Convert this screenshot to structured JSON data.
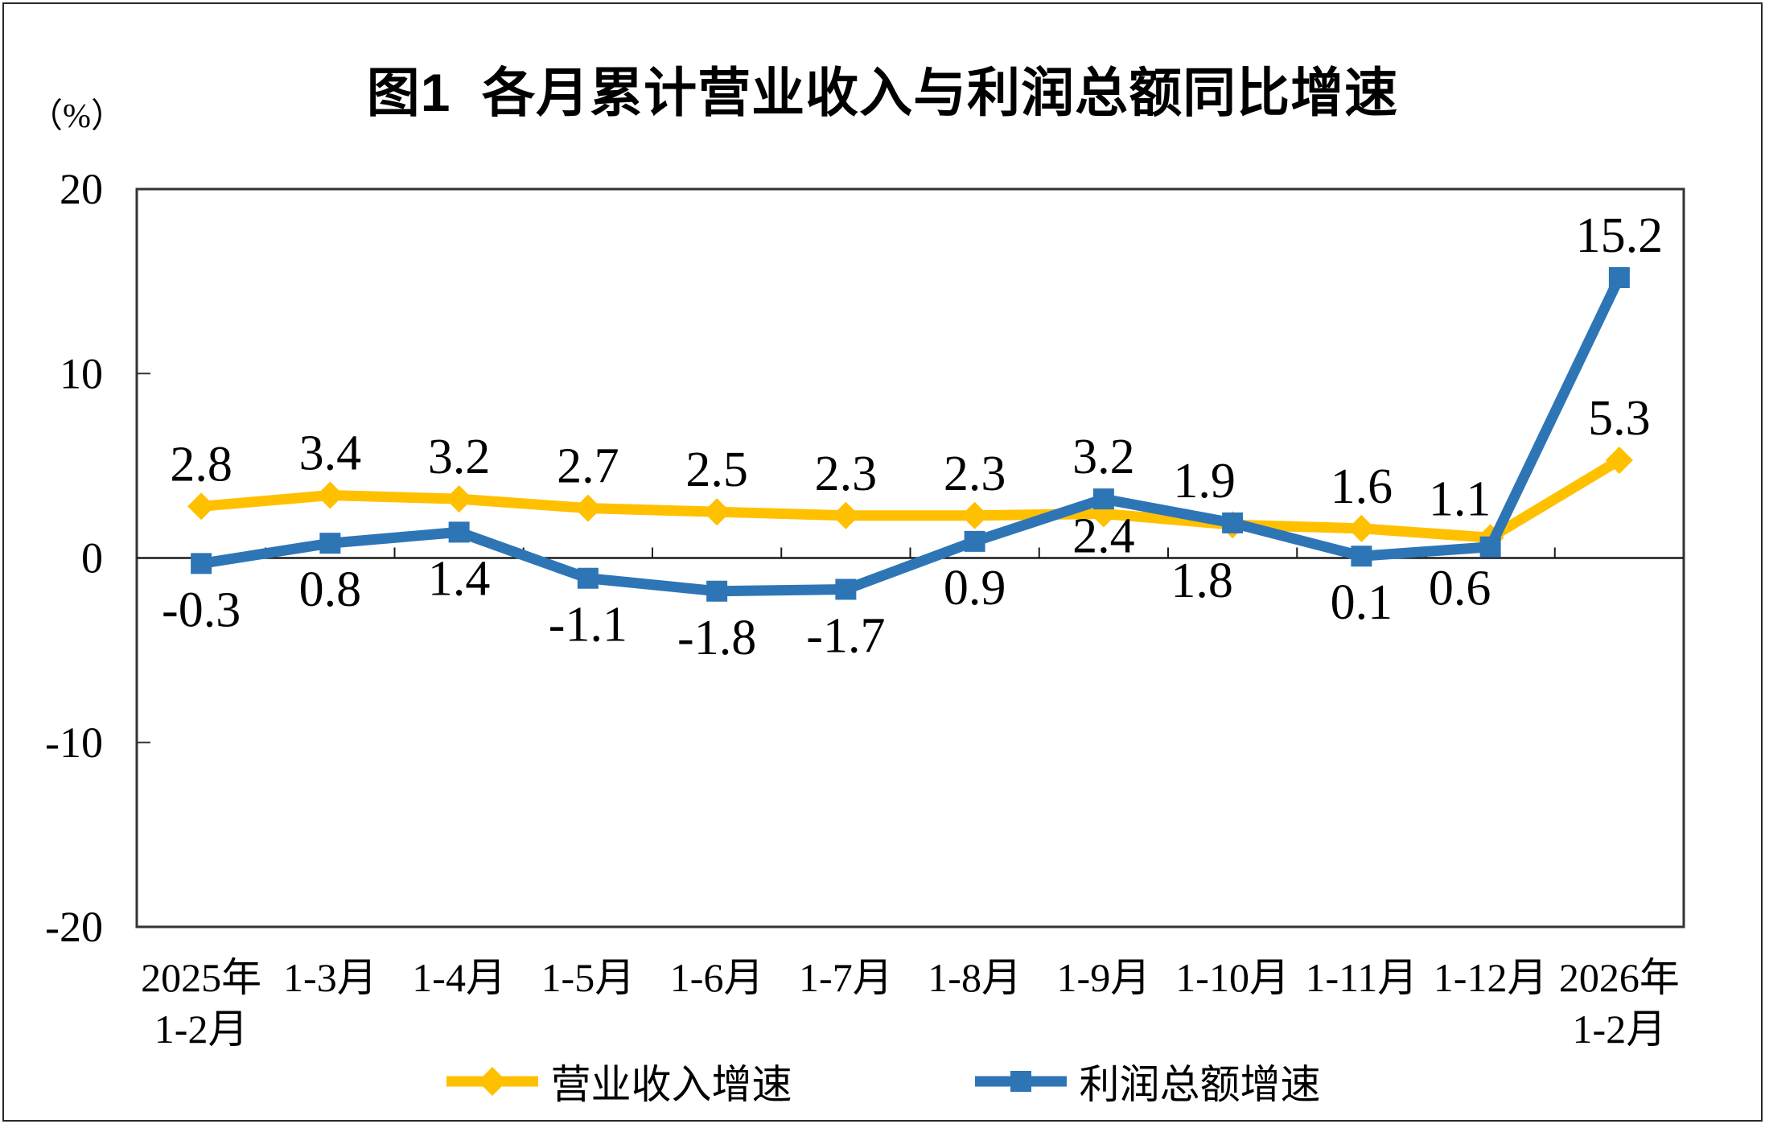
{
  "figure": {
    "title": "图1  各月累计营业收入与利润总额同比增速",
    "unit_label": "（%）"
  },
  "chart_data": {
    "type": "line",
    "title": "图1  各月累计营业收入与利润总额同比增速",
    "ylabel": "（%）",
    "grid": false,
    "legend_position": "bottom",
    "categories": [
      "2025年\n1-2月",
      "1-3月",
      "1-4月",
      "1-5月",
      "1-6月",
      "1-7月",
      "1-8月",
      "1-9月",
      "1-10月",
      "1-11月",
      "1-12月",
      "2026年\n1-2月"
    ],
    "y_axis": {
      "ticks": [
        20,
        10,
        0,
        -10,
        -20
      ],
      "min": -20,
      "max": 20,
      "unit": "（%）"
    },
    "series": [
      {
        "name": "营业收入增速",
        "color": "#FFC000",
        "marker": "diamond",
        "values": [
          2.8,
          3.4,
          3.2,
          2.7,
          2.5,
          2.3,
          2.3,
          2.4,
          1.8,
          1.6,
          1.1,
          5.3
        ],
        "label_positions": [
          "above",
          "above",
          "above",
          "above",
          "above",
          "above",
          "above",
          {
            "pos": "below",
            "dy": 48
          },
          {
            "pos": "below",
            "dx": -38,
            "dy": 90
          },
          "above",
          {
            "pos": "above",
            "dx": -38,
            "dy": -28
          },
          "above"
        ]
      },
      {
        "name": "利润总额增速",
        "color": "#2E75B6",
        "marker": "square",
        "values": [
          -0.3,
          0.8,
          1.4,
          -1.1,
          -1.8,
          -1.7,
          0.9,
          3.2,
          1.9,
          0.1,
          0.6,
          15.2
        ],
        "label_positions": [
          "below",
          "below",
          "below",
          "below",
          "below",
          "below",
          "below",
          "above",
          {
            "pos": "above",
            "dx": -35
          },
          "below",
          {
            "pos": "below",
            "dx": -38,
            "dy": 72
          },
          "above"
        ]
      }
    ]
  },
  "legend": {
    "items": [
      {
        "label": "营业收入增速",
        "color": "#FFC000",
        "marker": "diamond"
      },
      {
        "label": "利润总额增速",
        "color": "#2E75B6",
        "marker": "square"
      }
    ]
  }
}
